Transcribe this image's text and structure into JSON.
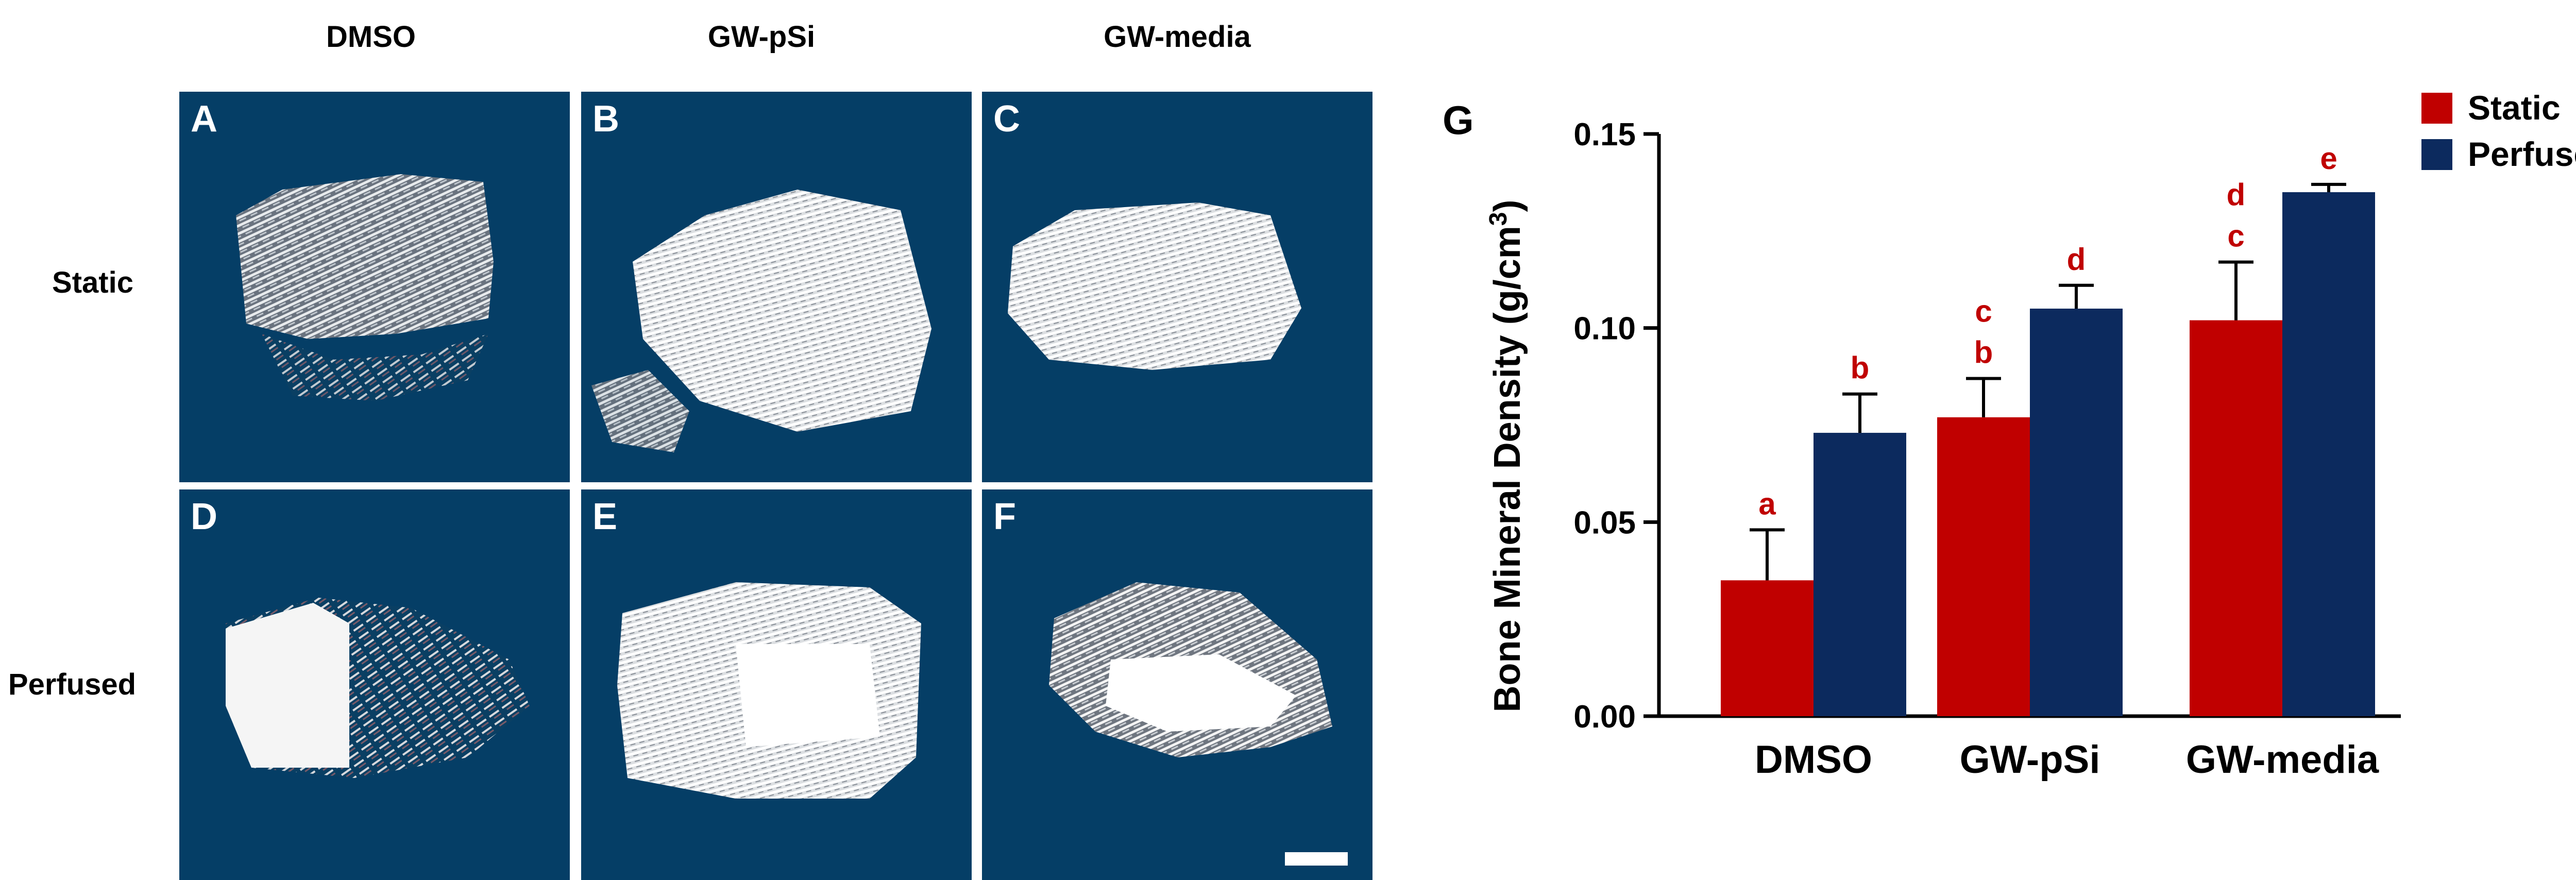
{
  "columns": [
    "DMSO",
    "GW-pSi",
    "GW-media"
  ],
  "rows": [
    "Static",
    "Perfused"
  ],
  "panels": [
    "A",
    "B",
    "C",
    "D",
    "E",
    "F"
  ],
  "chart_data": {
    "type": "bar",
    "panel_label": "G",
    "title": "",
    "xlabel": "",
    "ylabel": "Bone Mineral  Density (g/cm",
    "ylabel_sup": "3",
    "ylabel_end": ")",
    "categories": [
      "DMSO",
      "GW-pSi",
      "GW-media"
    ],
    "ylim": [
      0,
      0.15
    ],
    "yticks": [
      "0.00",
      "0.05",
      "0.10",
      "0.15"
    ],
    "series": [
      {
        "name": "Static",
        "color": "#c00000",
        "values": [
          0.035,
          0.077,
          0.102
        ],
        "errors": [
          0.013,
          0.01,
          0.015
        ],
        "letters": [
          [
            "a"
          ],
          [
            "c",
            "b"
          ],
          [
            "d",
            "c"
          ]
        ]
      },
      {
        "name": "Perfused",
        "color": "#0c2a5e",
        "values": [
          0.073,
          0.105,
          0.135
        ],
        "errors": [
          0.01,
          0.006,
          0.002
        ],
        "letters": [
          [
            "b"
          ],
          [
            "d"
          ],
          [
            "e"
          ]
        ]
      }
    ],
    "legend_position": "top-right",
    "letter_color": "#c00000"
  }
}
